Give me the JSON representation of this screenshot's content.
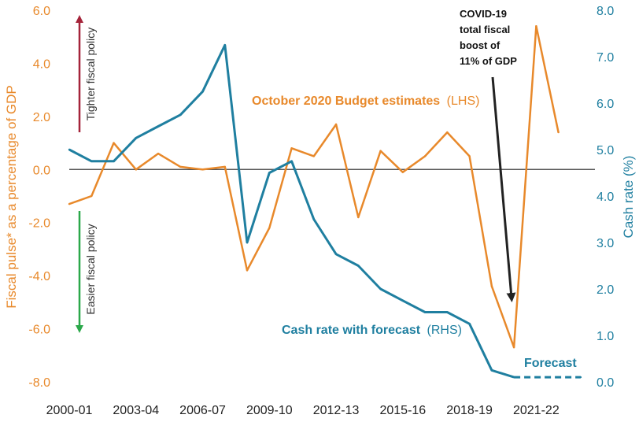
{
  "chart_data": {
    "type": "line",
    "x": [
      "2000-01",
      "2001-02",
      "2002-03",
      "2003-04",
      "2004-05",
      "2005-06",
      "2006-07",
      "2007-08",
      "2008-09",
      "2009-10",
      "2010-11",
      "2011-12",
      "2012-13",
      "2013-14",
      "2014-15",
      "2015-16",
      "2016-17",
      "2017-18",
      "2018-19",
      "2019-20",
      "2020-21",
      "2021-22",
      "2022-23",
      "2023-24"
    ],
    "x_tick_labels": [
      "2000-01",
      "2003-04",
      "2006-07",
      "2009-10",
      "2012-13",
      "2015-16",
      "2018-19",
      "2021-22"
    ],
    "left_axis": {
      "label": "Fiscal pulse* as a percentage of GDP",
      "ylim": [
        -8.0,
        6.0
      ],
      "ticks": [
        "-8.0",
        "-6.0",
        "-4.0",
        "-2.0",
        "0.0",
        "2.0",
        "4.0",
        "6.0"
      ],
      "color": "#E8892B"
    },
    "right_axis": {
      "label": "Cash rate (%)",
      "ylim": [
        0.0,
        8.0
      ],
      "ticks": [
        "0.0",
        "1.0",
        "2.0",
        "3.0",
        "4.0",
        "5.0",
        "6.0",
        "7.0",
        "8.0"
      ],
      "color": "#1F7FA0"
    },
    "series": [
      {
        "name": "October 2020 Budget estimates",
        "name_suffix": "(LHS)",
        "axis": "left",
        "color": "#E8892B",
        "values": [
          -1.3,
          -1.0,
          1.0,
          0.0,
          0.6,
          0.1,
          0.0,
          0.1,
          -3.8,
          -2.2,
          0.8,
          0.5,
          1.7,
          -1.8,
          0.7,
          -0.1,
          0.5,
          1.4,
          0.5,
          -4.4,
          -6.7,
          5.4,
          1.4,
          null
        ]
      },
      {
        "name": "Cash rate with forecast",
        "name_suffix": "(RHS)",
        "axis": "right",
        "color": "#1F7FA0",
        "values": [
          5.0,
          4.75,
          4.75,
          5.25,
          5.5,
          5.75,
          6.25,
          7.25,
          3.0,
          4.5,
          4.75,
          3.5,
          2.75,
          2.5,
          2.0,
          1.75,
          1.5,
          1.5,
          1.25,
          0.25,
          0.1,
          0.1,
          0.1,
          0.1
        ],
        "forecast_from_index": 20
      }
    ],
    "annotations": {
      "tighter": "Tighter fiscal policy",
      "easier": "Easier fiscal policy",
      "covid": [
        "COVID-19",
        "total fiscal",
        "boost of",
        "11% of GDP"
      ],
      "forecast": "Forecast"
    },
    "arrow_colors": {
      "tighter": "#A5243A",
      "easier": "#2BA84A",
      "covid": "#222222"
    },
    "grid": false
  }
}
